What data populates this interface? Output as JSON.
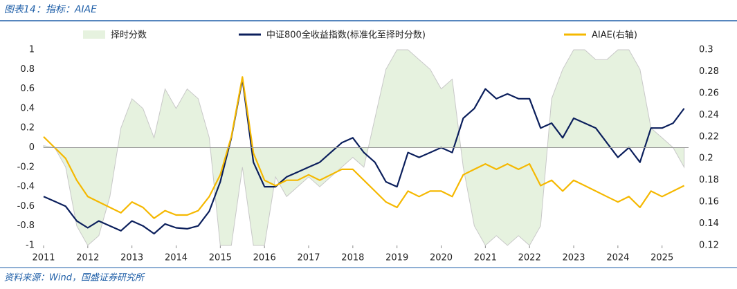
{
  "header": "图表14：指标：AIAE",
  "source": "资料来源：Wind，国盛证券研究所",
  "chart_data": {
    "type": "line",
    "x": [
      2011,
      2011.25,
      2011.5,
      2011.75,
      2012,
      2012.25,
      2012.5,
      2012.75,
      2013,
      2013.25,
      2013.5,
      2013.75,
      2014,
      2014.25,
      2014.5,
      2014.75,
      2015,
      2015.25,
      2015.5,
      2015.75,
      2016,
      2016.25,
      2016.5,
      2016.75,
      2017,
      2017.25,
      2017.5,
      2017.75,
      2018,
      2018.25,
      2018.5,
      2018.75,
      2019,
      2019.25,
      2019.5,
      2019.75,
      2020,
      2020.25,
      2020.5,
      2020.75,
      2021,
      2021.25,
      2021.5,
      2021.75,
      2022,
      2022.25,
      2022.5,
      2022.75,
      2023,
      2023.25,
      2023.5,
      2023.75,
      2024,
      2024.25,
      2024.5,
      2024.75,
      2025,
      2025.25,
      2025.5
    ],
    "xlim": [
      2011,
      2025.6
    ],
    "xticks": [
      2011,
      2012,
      2013,
      2014,
      2015,
      2016,
      2017,
      2018,
      2019,
      2020,
      2021,
      2022,
      2023,
      2024,
      2025
    ],
    "ylim": [
      -1,
      1
    ],
    "yticks": [
      -1,
      -0.8,
      -0.6,
      -0.4,
      -0.2,
      0,
      0.2,
      0.4,
      0.6,
      0.8,
      1
    ],
    "y2lim": [
      0.12,
      0.3
    ],
    "y2ticks": [
      0.12,
      0.14,
      0.16,
      0.18,
      0.2,
      0.22,
      0.24,
      0.26,
      0.28,
      0.3
    ],
    "series": [
      {
        "name": "择时分数",
        "kind": "area",
        "color": "#e6f2df",
        "values": [
          0.02,
          0,
          -0.2,
          -0.8,
          -1,
          -0.9,
          -0.5,
          0.2,
          0.5,
          0.4,
          0.1,
          0.6,
          0.4,
          0.6,
          0.5,
          0.1,
          -1,
          -1,
          -0.2,
          -1,
          -1,
          -0.3,
          -0.5,
          -0.4,
          -0.3,
          -0.4,
          -0.3,
          -0.2,
          -0.1,
          -0.2,
          0.3,
          0.8,
          1,
          1,
          0.9,
          0.8,
          0.6,
          0.7,
          -0.2,
          -0.8,
          -1,
          -0.9,
          -1,
          -0.9,
          -1,
          -0.8,
          0.5,
          0.8,
          1,
          1,
          0.9,
          0.9,
          1,
          1,
          0.8,
          0.2,
          0.1,
          0,
          -0.2
        ]
      },
      {
        "name": "中证800全收益指数(标准化至择时分数)",
        "color": "#0b1f5c",
        "values": [
          -0.5,
          -0.55,
          -0.6,
          -0.75,
          -0.82,
          -0.75,
          -0.8,
          -0.85,
          -0.75,
          -0.8,
          -0.88,
          -0.78,
          -0.82,
          -0.83,
          -0.8,
          -0.65,
          -0.35,
          0.1,
          0.7,
          -0.15,
          -0.4,
          -0.4,
          -0.3,
          -0.25,
          -0.2,
          -0.15,
          -0.05,
          0.05,
          0.1,
          -0.05,
          -0.15,
          -0.35,
          -0.4,
          -0.05,
          -0.1,
          -0.05,
          0,
          -0.05,
          0.3,
          0.4,
          0.6,
          0.5,
          0.55,
          0.5,
          0.5,
          0.2,
          0.25,
          0.1,
          0.3,
          0.25,
          0.2,
          0.05,
          -0.1,
          0,
          -0.15,
          0.2,
          0.2,
          0.25,
          0.4
        ]
      },
      {
        "name": "AIAE(右轴)",
        "color": "#f5b800",
        "axis": "y2",
        "values": [
          0.22,
          0.21,
          0.2,
          0.18,
          0.165,
          0.16,
          0.155,
          0.15,
          0.16,
          0.155,
          0.145,
          0.152,
          0.148,
          0.148,
          0.152,
          0.165,
          0.185,
          0.22,
          0.275,
          0.205,
          0.18,
          0.175,
          0.18,
          0.18,
          0.185,
          0.18,
          0.185,
          0.19,
          0.19,
          0.18,
          0.17,
          0.16,
          0.155,
          0.17,
          0.165,
          0.17,
          0.17,
          0.165,
          0.185,
          0.19,
          0.195,
          0.19,
          0.195,
          0.19,
          0.195,
          0.175,
          0.18,
          0.17,
          0.18,
          0.175,
          0.17,
          0.165,
          0.16,
          0.165,
          0.155,
          0.17,
          0.165,
          0.17,
          0.175
        ]
      }
    ]
  }
}
